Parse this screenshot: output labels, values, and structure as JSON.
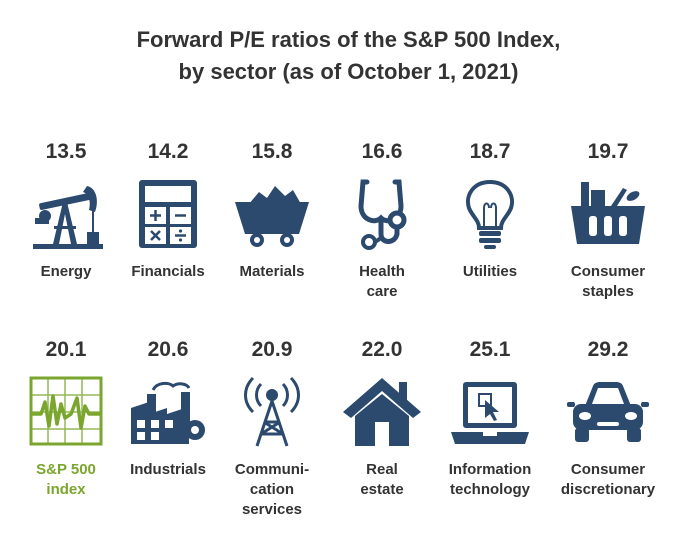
{
  "title_lines": [
    "Forward P/E ratios of the S&P 500 Index,",
    "by sector (as of October 1, 2021)"
  ],
  "colors": {
    "icon": "#2b4a6e",
    "highlight": "#7aa62e",
    "text": "#333333"
  },
  "chart_data": {
    "type": "table",
    "title": "Forward P/E ratios of the S&P 500 Index, by sector (as of October 1, 2021)",
    "categories": [
      "Energy",
      "Financials",
      "Materials",
      "Health care",
      "Utilities",
      "Consumer staples",
      "S&P 500 index",
      "Industrials",
      "Communication services",
      "Real estate",
      "Information technology",
      "Consumer discretionary"
    ],
    "values": [
      13.5,
      14.2,
      15.8,
      16.6,
      18.7,
      19.7,
      20.1,
      20.6,
      20.9,
      22.0,
      25.1,
      29.2
    ],
    "items": [
      {
        "key": "energy",
        "value": "13.5",
        "label_lines": [
          "Energy"
        ],
        "icon": "oil-pump-icon",
        "highlight": false
      },
      {
        "key": "financials",
        "value": "14.2",
        "label_lines": [
          "Financials"
        ],
        "icon": "calculator-icon",
        "highlight": false
      },
      {
        "key": "materials",
        "value": "15.8",
        "label_lines": [
          "Materials"
        ],
        "icon": "mine-cart-icon",
        "highlight": false
      },
      {
        "key": "health-care",
        "value": "16.6",
        "label_lines": [
          "Health",
          "care"
        ],
        "icon": "stethoscope-icon",
        "highlight": false
      },
      {
        "key": "utilities",
        "value": "18.7",
        "label_lines": [
          "Utilities"
        ],
        "icon": "light-bulb-icon",
        "highlight": false
      },
      {
        "key": "consumer-staples",
        "value": "19.7",
        "label_lines": [
          "Consumer",
          "staples"
        ],
        "icon": "grocery-basket-icon",
        "highlight": false
      },
      {
        "key": "sp500-index",
        "value": "20.1",
        "label_lines": [
          "S&P 500",
          "index"
        ],
        "icon": "stock-chart-icon",
        "highlight": true
      },
      {
        "key": "industrials",
        "value": "20.6",
        "label_lines": [
          "Industrials"
        ],
        "icon": "factory-icon",
        "highlight": false
      },
      {
        "key": "communication-services",
        "value": "20.9",
        "label_lines": [
          "Communi-",
          "cation",
          "services"
        ],
        "icon": "radio-tower-icon",
        "highlight": false
      },
      {
        "key": "real-estate",
        "value": "22.0",
        "label_lines": [
          "Real",
          "estate"
        ],
        "icon": "house-icon",
        "highlight": false
      },
      {
        "key": "information-technology",
        "value": "25.1",
        "label_lines": [
          "Information",
          "technology"
        ],
        "icon": "laptop-icon",
        "highlight": false
      },
      {
        "key": "consumer-discretionary",
        "value": "29.2",
        "label_lines": [
          "Consumer",
          "discretionary"
        ],
        "icon": "car-icon",
        "highlight": false
      }
    ]
  }
}
